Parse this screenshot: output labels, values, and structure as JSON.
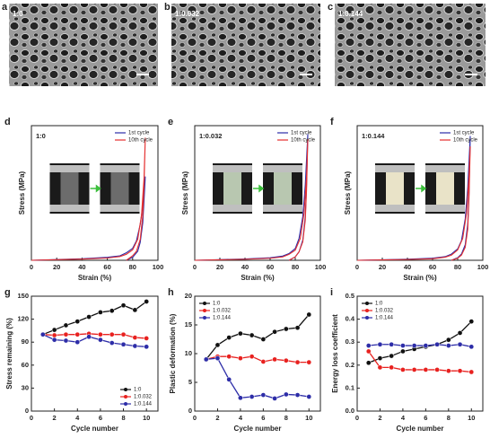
{
  "images": [
    {
      "letter": "a",
      "label": "1:0"
    },
    {
      "letter": "b",
      "label": "1:0.032"
    },
    {
      "letter": "c",
      "label": "1:0.144"
    }
  ],
  "chart_data": [
    {
      "type": "line",
      "letter": "d",
      "annotation": "1:0",
      "xlabel": "Strain (%)",
      "ylabel": "Stress (MPa)",
      "xlim": [
        0,
        100
      ],
      "xticks": [
        0,
        20,
        40,
        60,
        80,
        100
      ],
      "ylim": [
        0,
        0.9
      ],
      "legend": "upper right",
      "series": [
        {
          "name": "1st cycle",
          "color": "#2b2ba8",
          "x": [
            0,
            20,
            40,
            60,
            70,
            75,
            80,
            83,
            86,
            88,
            90,
            89,
            88,
            86,
            84,
            80,
            75
          ],
          "values": [
            0,
            0.005,
            0.01,
            0.02,
            0.03,
            0.05,
            0.08,
            0.13,
            0.24,
            0.36,
            0.56,
            0.4,
            0.25,
            0.12,
            0.06,
            0.02,
            0
          ]
        },
        {
          "name": "10th cycle",
          "color": "#e53030",
          "x": [
            0,
            20,
            40,
            60,
            70,
            75,
            80,
            84,
            87,
            89,
            90,
            89,
            88,
            86,
            83,
            80,
            75
          ],
          "values": [
            0,
            0.004,
            0.008,
            0.015,
            0.025,
            0.04,
            0.07,
            0.14,
            0.3,
            0.55,
            0.82,
            0.5,
            0.3,
            0.14,
            0.06,
            0.03,
            0
          ]
        }
      ]
    },
    {
      "type": "line",
      "letter": "e",
      "annotation": "1:0.032",
      "xlabel": "Strain (%)",
      "ylabel": "Stress (MPa)",
      "xlim": [
        0,
        100
      ],
      "xticks": [
        0,
        20,
        40,
        60,
        80,
        100
      ],
      "ylim": [
        0,
        0.8
      ],
      "legend": "upper right",
      "series": [
        {
          "name": "1st cycle",
          "color": "#2b2ba8",
          "x": [
            0,
            20,
            40,
            60,
            70,
            75,
            80,
            83,
            86,
            88,
            90,
            89,
            88,
            86,
            83,
            80,
            75
          ],
          "values": [
            0,
            0.004,
            0.008,
            0.015,
            0.025,
            0.04,
            0.07,
            0.13,
            0.26,
            0.45,
            0.75,
            0.45,
            0.26,
            0.12,
            0.05,
            0.02,
            0
          ]
        },
        {
          "name": "10th cycle",
          "color": "#e53030",
          "x": [
            0,
            20,
            40,
            60,
            70,
            75,
            80,
            84,
            87,
            89,
            90,
            89,
            88,
            86,
            83,
            80,
            75
          ],
          "values": [
            0,
            0.003,
            0.006,
            0.012,
            0.02,
            0.035,
            0.06,
            0.13,
            0.28,
            0.5,
            0.72,
            0.42,
            0.24,
            0.11,
            0.05,
            0.02,
            0
          ]
        }
      ]
    },
    {
      "type": "line",
      "letter": "f",
      "annotation": "1:0.144",
      "xlabel": "Strain (%)",
      "ylabel": "Stress (MPa)",
      "xlim": [
        0,
        100
      ],
      "xticks": [
        0,
        20,
        40,
        60,
        80,
        100
      ],
      "ylim": [
        0,
        2.6
      ],
      "legend": "upper right",
      "series": [
        {
          "name": "1st cycle",
          "color": "#2b2ba8",
          "x": [
            0,
            20,
            40,
            60,
            70,
            75,
            80,
            83,
            86,
            88,
            90,
            89,
            88,
            86,
            83,
            80,
            75
          ],
          "values": [
            0,
            0.01,
            0.02,
            0.04,
            0.07,
            0.12,
            0.22,
            0.38,
            0.8,
            1.4,
            2.4,
            1.3,
            0.7,
            0.3,
            0.12,
            0.05,
            0
          ]
        },
        {
          "name": "10th cycle",
          "color": "#e53030",
          "x": [
            0,
            20,
            40,
            60,
            70,
            75,
            80,
            84,
            87,
            89,
            90,
            89,
            88,
            86,
            83,
            80,
            75
          ],
          "values": [
            0,
            0.008,
            0.015,
            0.03,
            0.06,
            0.1,
            0.2,
            0.42,
            0.9,
            1.6,
            2.2,
            1.2,
            0.6,
            0.25,
            0.1,
            0.04,
            0
          ]
        }
      ]
    },
    {
      "type": "line",
      "letter": "g",
      "xlabel": "Cycle number",
      "ylabel": "Stress  remaining (%)",
      "markers": true,
      "x": [
        1,
        2,
        3,
        4,
        5,
        6,
        7,
        8,
        9,
        10
      ],
      "xlim": [
        0,
        11
      ],
      "xticks": [
        0,
        2,
        4,
        6,
        8,
        10
      ],
      "ylim": [
        0,
        150
      ],
      "yticks": [
        0,
        30,
        60,
        90,
        120,
        150
      ],
      "legend": "lower right",
      "series": [
        {
          "name": "1:0",
          "color": "#111111",
          "values": [
            100,
            106,
            112,
            117,
            123,
            129,
            131,
            138,
            132,
            143
          ]
        },
        {
          "name": "1:0.032",
          "color": "#e8211f",
          "values": [
            100,
            99,
            100,
            100,
            101,
            100,
            100,
            100,
            96,
            95
          ]
        },
        {
          "name": "1:0.144",
          "color": "#2d2da8",
          "values": [
            100,
            93,
            92,
            90,
            97,
            93,
            89,
            87,
            85,
            84
          ]
        }
      ]
    },
    {
      "type": "line",
      "letter": "h",
      "xlabel": "Cycle number",
      "ylabel": "Plastic deformation (%)",
      "markers": true,
      "x": [
        1,
        2,
        3,
        4,
        5,
        6,
        7,
        8,
        9,
        10
      ],
      "xlim": [
        0,
        11
      ],
      "xticks": [
        0,
        2,
        4,
        6,
        8,
        10
      ],
      "ylim": [
        0,
        20
      ],
      "yticks": [
        0,
        5,
        10,
        15,
        20
      ],
      "legend": "upper left",
      "series": [
        {
          "name": "1:0",
          "color": "#111111",
          "values": [
            9,
            11.5,
            12.8,
            13.5,
            13.2,
            12.5,
            13.8,
            14.3,
            14.5,
            16.8
          ]
        },
        {
          "name": "1:0.032",
          "color": "#e8211f",
          "values": [
            9,
            9.5,
            9.5,
            9.2,
            9.5,
            8.6,
            9,
            8.8,
            8.5,
            8.5
          ]
        },
        {
          "name": "1:0.144",
          "color": "#2d2da8",
          "values": [
            9,
            9.2,
            5.5,
            2.3,
            2.5,
            2.8,
            2.2,
            2.9,
            2.8,
            2.5
          ]
        }
      ]
    },
    {
      "type": "line",
      "letter": "i",
      "xlabel": "Cycle number",
      "ylabel": "Energy loss coefficient",
      "markers": true,
      "x": [
        1,
        2,
        3,
        4,
        5,
        6,
        7,
        8,
        9,
        10
      ],
      "xlim": [
        0,
        11
      ],
      "xticks": [
        0,
        2,
        4,
        6,
        8,
        10
      ],
      "ylim": [
        0,
        0.5
      ],
      "yticks": [
        {
          "value": 0,
          "label": "0.0"
        },
        0.1,
        0.2,
        0.3,
        0.4,
        0.5
      ],
      "legend": "upper left",
      "series": [
        {
          "name": "1:0",
          "color": "#111111",
          "values": [
            0.21,
            0.23,
            0.24,
            0.26,
            0.27,
            0.28,
            0.29,
            0.31,
            0.34,
            0.39
          ]
        },
        {
          "name": "1:0.032",
          "color": "#e8211f",
          "values": [
            0.26,
            0.19,
            0.19,
            0.18,
            0.18,
            0.18,
            0.18,
            0.175,
            0.175,
            0.17
          ]
        },
        {
          "name": "1:0.144",
          "color": "#2d2da8",
          "values": [
            0.285,
            0.29,
            0.29,
            0.285,
            0.285,
            0.285,
            0.29,
            0.285,
            0.29,
            0.28
          ]
        }
      ]
    }
  ]
}
